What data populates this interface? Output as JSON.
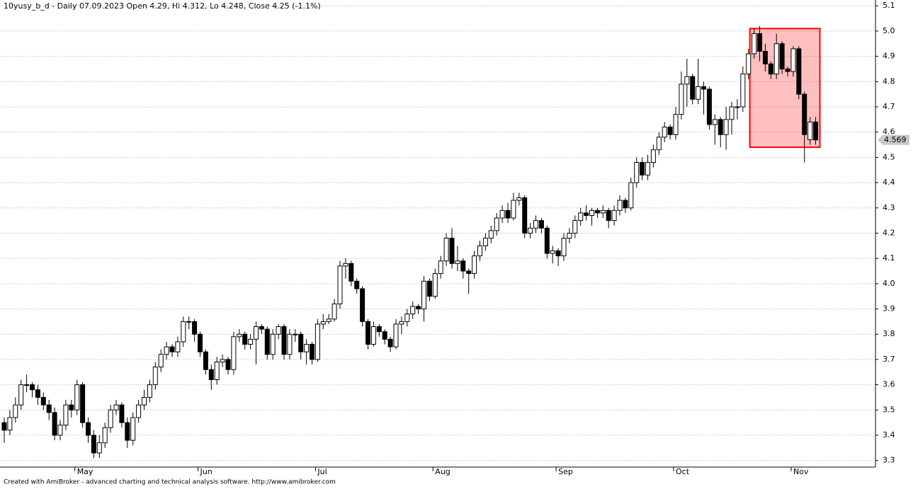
{
  "chart_data": {
    "type": "candlestick",
    "title": "10yusy_b_d - Daily 07.09.2023 Open 4.29, Hi 4.312, Lo 4.248, Close 4.25 (-1.1%)",
    "footer": "Created with AmiBroker - advanced charting and technical analysis software. http://www.amibroker.com",
    "categories": [
      null,
      null,
      null,
      null,
      null,
      null,
      null,
      null,
      null,
      null,
      null,
      null,
      null,
      "May",
      null,
      null,
      null,
      null,
      null,
      null,
      null,
      null,
      null,
      null,
      null,
      null,
      null,
      null,
      null,
      null,
      null,
      null,
      null,
      null,
      null,
      "Jun",
      null,
      null,
      null,
      null,
      null,
      null,
      null,
      null,
      null,
      null,
      null,
      null,
      null,
      null,
      null,
      null,
      null,
      null,
      null,
      null,
      "Jul",
      null,
      null,
      null,
      null,
      null,
      null,
      null,
      null,
      null,
      null,
      null,
      null,
      null,
      null,
      null,
      null,
      null,
      null,
      null,
      null,
      "Aug",
      null,
      null,
      null,
      null,
      null,
      null,
      null,
      null,
      null,
      null,
      null,
      null,
      null,
      null,
      null,
      null,
      null,
      null,
      null,
      null,
      null,
      "Sep",
      null,
      null,
      null,
      null,
      null,
      null,
      null,
      null,
      null,
      null,
      null,
      null,
      null,
      null,
      null,
      null,
      null,
      null,
      null,
      null,
      "Oct",
      null,
      null,
      null,
      null,
      null,
      null,
      null,
      null,
      null,
      null,
      null,
      null,
      null,
      null,
      null,
      null,
      null,
      null,
      null,
      null,
      "Nov",
      null,
      null,
      null,
      null
    ],
    "open": [
      3.45,
      3.42,
      3.47,
      3.52,
      3.6,
      3.6,
      3.58,
      3.55,
      3.52,
      3.49,
      3.4,
      3.44,
      3.52,
      3.5,
      3.6,
      3.45,
      3.4,
      3.33,
      3.37,
      3.43,
      3.5,
      3.52,
      3.45,
      3.38,
      3.47,
      3.52,
      3.55,
      3.6,
      3.67,
      3.72,
      3.75,
      3.73,
      3.77,
      3.85,
      3.85,
      3.8,
      3.73,
      3.66,
      3.62,
      3.69,
      3.7,
      3.66,
      3.79,
      3.8,
      3.76,
      3.78,
      3.83,
      3.82,
      3.72,
      3.8,
      3.83,
      3.72,
      3.8,
      3.8,
      3.73,
      3.76,
      3.7,
      3.84,
      3.85,
      3.86,
      3.92,
      4.07,
      4.08,
      4.01,
      3.98,
      3.85,
      3.76,
      3.83,
      3.81,
      3.78,
      3.75,
      3.84,
      3.85,
      3.88,
      3.91,
      3.9,
      4.01,
      3.95,
      4.04,
      4.09,
      4.18,
      4.08,
      4.09,
      4.05,
      4.04,
      4.11,
      4.15,
      4.18,
      4.21,
      4.26,
      4.29,
      4.26,
      4.33,
      4.34,
      4.2,
      4.22,
      4.25,
      4.22,
      4.12,
      4.13,
      4.11,
      4.18,
      4.2,
      4.25,
      4.28,
      4.27,
      4.29,
      4.28,
      4.29,
      4.25,
      4.29,
      4.33,
      4.3,
      4.4,
      4.48,
      4.43,
      4.48,
      4.53,
      4.58,
      4.62,
      4.59,
      4.67,
      4.79,
      4.82,
      4.73,
      4.78,
      4.77,
      4.63,
      4.65,
      4.59,
      4.65,
      4.7,
      4.7,
      4.83,
      4.91,
      4.99,
      4.92,
      4.87,
      4.83,
      4.95,
      4.85,
      4.84,
      4.93,
      4.75,
      4.57,
      4.64
    ],
    "high": [
      3.47,
      3.5,
      3.55,
      3.62,
      3.64,
      3.61,
      3.6,
      3.57,
      3.54,
      3.51,
      3.46,
      3.54,
      3.54,
      3.62,
      3.61,
      3.47,
      3.42,
      3.4,
      3.45,
      3.52,
      3.54,
      3.53,
      3.47,
      3.49,
      3.54,
      3.58,
      3.62,
      3.69,
      3.74,
      3.77,
      3.76,
      3.79,
      3.87,
      3.87,
      3.86,
      3.81,
      3.74,
      3.68,
      3.71,
      3.72,
      3.71,
      3.81,
      3.82,
      3.81,
      3.8,
      3.85,
      3.84,
      3.83,
      3.82,
      3.84,
      3.84,
      3.82,
      3.82,
      3.81,
      3.78,
      3.77,
      3.86,
      3.88,
      3.88,
      3.94,
      4.09,
      4.1,
      4.09,
      4.02,
      3.99,
      3.86,
      3.85,
      3.84,
      3.82,
      3.79,
      3.86,
      3.87,
      3.9,
      3.93,
      3.92,
      4.03,
      4.02,
      4.06,
      4.11,
      4.2,
      4.22,
      4.15,
      4.1,
      4.06,
      4.13,
      4.17,
      4.2,
      4.23,
      4.28,
      4.31,
      4.32,
      4.36,
      4.36,
      4.35,
      4.24,
      4.27,
      4.26,
      4.23,
      4.15,
      4.14,
      4.2,
      4.22,
      4.27,
      4.3,
      4.31,
      4.3,
      4.3,
      4.31,
      4.3,
      4.31,
      4.35,
      4.34,
      4.42,
      4.5,
      4.5,
      4.51,
      4.55,
      4.6,
      4.64,
      4.63,
      4.7,
      4.84,
      4.89,
      4.83,
      4.89,
      4.8,
      4.78,
      4.67,
      4.66,
      4.7,
      4.72,
      4.73,
      4.86,
      4.93,
      5.01,
      5.02,
      4.95,
      4.88,
      4.99,
      4.96,
      4.86,
      4.94,
      4.94,
      4.76,
      4.66,
      4.66
    ],
    "low": [
      3.37,
      3.4,
      3.45,
      3.5,
      3.57,
      3.55,
      3.52,
      3.5,
      3.46,
      3.38,
      3.38,
      3.42,
      3.47,
      3.48,
      3.43,
      3.37,
      3.31,
      3.31,
      3.35,
      3.41,
      3.48,
      3.43,
      3.35,
      3.36,
      3.45,
      3.5,
      3.53,
      3.58,
      3.65,
      3.7,
      3.71,
      3.71,
      3.75,
      3.82,
      3.77,
      3.71,
      3.64,
      3.58,
      3.6,
      3.67,
      3.64,
      3.64,
      3.77,
      3.74,
      3.74,
      3.68,
      3.8,
      3.7,
      3.7,
      3.78,
      3.7,
      3.7,
      3.77,
      3.7,
      3.68,
      3.68,
      3.69,
      3.82,
      3.84,
      3.85,
      3.9,
      4.02,
      3.99,
      3.96,
      3.83,
      3.74,
      3.75,
      3.79,
      3.76,
      3.73,
      3.74,
      3.8,
      3.83,
      3.86,
      3.88,
      3.85,
      3.93,
      3.94,
      4.02,
      4.07,
      4.06,
      4.05,
      4.02,
      3.96,
      4.02,
      4.09,
      4.13,
      4.16,
      4.19,
      4.24,
      4.24,
      4.25,
      4.31,
      4.18,
      4.18,
      4.2,
      4.2,
      4.1,
      4.08,
      4.07,
      4.09,
      4.16,
      4.18,
      4.23,
      4.25,
      4.23,
      4.26,
      4.26,
      4.22,
      4.23,
      4.27,
      4.28,
      4.29,
      4.38,
      4.41,
      4.41,
      4.46,
      4.51,
      4.56,
      4.57,
      4.57,
      4.65,
      4.7,
      4.71,
      4.71,
      4.67,
      4.61,
      4.55,
      4.54,
      4.53,
      4.59,
      4.65,
      4.68,
      4.81,
      4.89,
      4.88,
      4.84,
      4.81,
      4.81,
      4.83,
      4.82,
      4.82,
      4.73,
      4.48,
      4.55,
      4.55
    ],
    "close": [
      3.42,
      3.47,
      3.52,
      3.6,
      3.6,
      3.58,
      3.55,
      3.52,
      3.49,
      3.4,
      3.44,
      3.52,
      3.5,
      3.6,
      3.45,
      3.4,
      3.33,
      3.37,
      3.43,
      3.5,
      3.52,
      3.45,
      3.38,
      3.47,
      3.52,
      3.55,
      3.6,
      3.67,
      3.72,
      3.75,
      3.73,
      3.77,
      3.85,
      3.85,
      3.8,
      3.73,
      3.66,
      3.62,
      3.69,
      3.7,
      3.66,
      3.79,
      3.8,
      3.76,
      3.78,
      3.83,
      3.82,
      3.72,
      3.8,
      3.83,
      3.72,
      3.8,
      3.8,
      3.73,
      3.76,
      3.7,
      3.84,
      3.85,
      3.86,
      3.92,
      4.07,
      4.08,
      4.01,
      3.98,
      3.85,
      3.76,
      3.83,
      3.81,
      3.78,
      3.75,
      3.84,
      3.85,
      3.88,
      3.91,
      3.9,
      4.01,
      3.95,
      4.04,
      4.09,
      4.18,
      4.08,
      4.09,
      4.05,
      4.04,
      4.11,
      4.15,
      4.18,
      4.21,
      4.26,
      4.29,
      4.26,
      4.33,
      4.34,
      4.2,
      4.22,
      4.25,
      4.22,
      4.12,
      4.13,
      4.11,
      4.18,
      4.2,
      4.25,
      4.28,
      4.27,
      4.29,
      4.28,
      4.29,
      4.25,
      4.29,
      4.33,
      4.3,
      4.4,
      4.48,
      4.43,
      4.48,
      4.53,
      4.58,
      4.62,
      4.59,
      4.67,
      4.79,
      4.82,
      4.73,
      4.78,
      4.77,
      4.63,
      4.65,
      4.59,
      4.65,
      4.7,
      4.7,
      4.83,
      4.91,
      4.99,
      4.92,
      4.87,
      4.83,
      4.95,
      4.85,
      4.84,
      4.93,
      4.75,
      4.59,
      4.64,
      4.569
    ],
    "up_color": "#ffffff",
    "down_color": "#000000",
    "ylim": [
      3.274,
      5.123
    ],
    "yticks": [
      3.3,
      3.4,
      3.5,
      3.6,
      3.7,
      3.8,
      3.9,
      {
        "value": 4,
        "label": "4.0"
      },
      4.1,
      4.2,
      4.3,
      4.4,
      4.5,
      4.6,
      4.7,
      4.8,
      4.9,
      {
        "value": 5,
        "label": "5.0"
      },
      5.1
    ],
    "grid": true,
    "highlight": {
      "ylim": [
        4.54,
        5.01
      ],
      "start": 134,
      "end": 145,
      "color": "#ff0000"
    }
  }
}
